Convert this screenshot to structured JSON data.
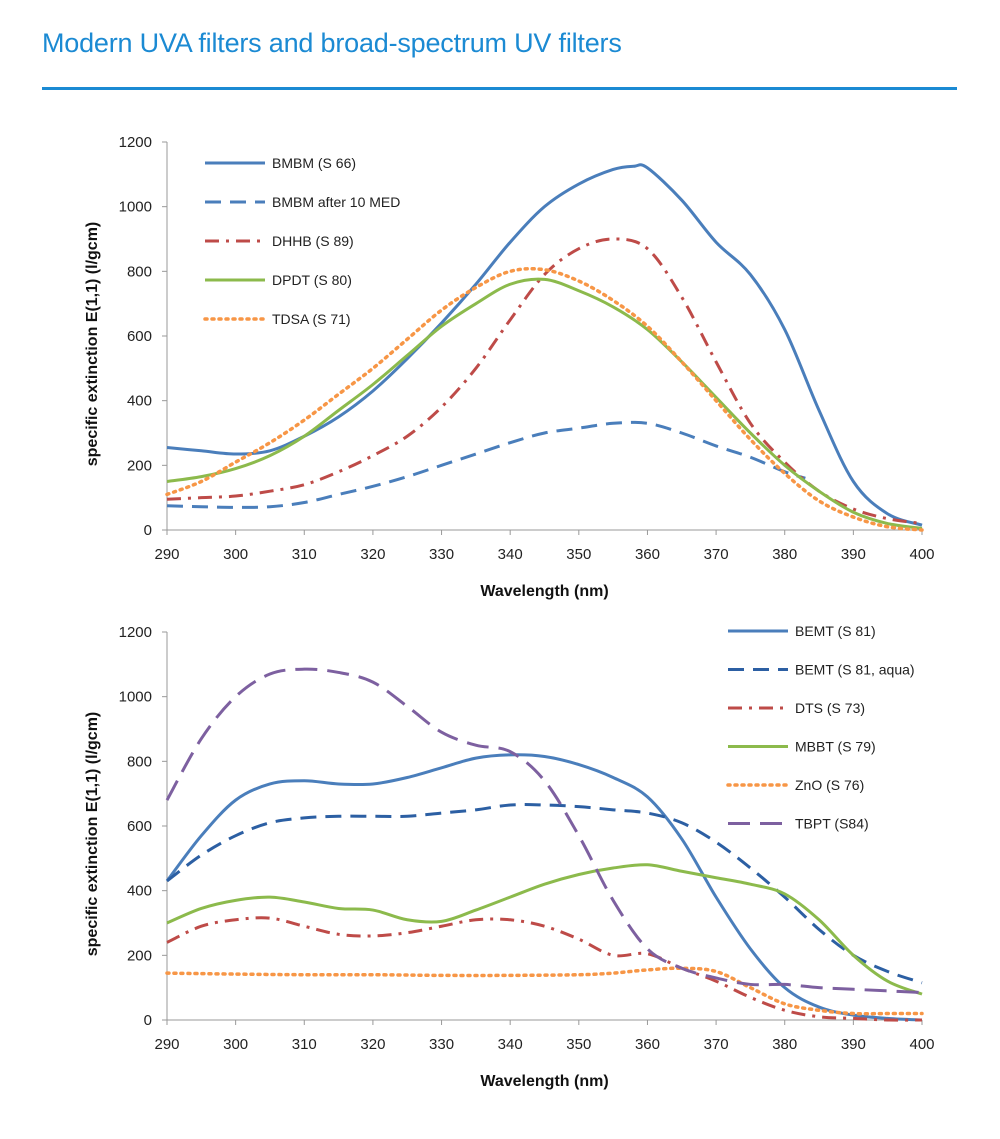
{
  "title": "Modern UVA filters and broad-spectrum UV filters",
  "colors": {
    "accent": "#1b8ad3"
  },
  "chart_data": [
    {
      "type": "line",
      "xlabel": "Wavelength (nm)",
      "ylabel": "specific extinction E(1,1) (l/gcm)",
      "xlim": [
        290,
        400
      ],
      "ylim": [
        0,
        1200
      ],
      "xticks": [
        "290",
        "300",
        "310",
        "320",
        "330",
        "340",
        "350",
        "360",
        "370",
        "380",
        "390",
        "400"
      ],
      "yticks": [
        "0",
        "200",
        "400",
        "600",
        "800",
        "1000",
        "1200"
      ],
      "grid": false,
      "legend": "top-left",
      "series": [
        {
          "name": "BMBM (S 66)",
          "color": "#4a7ebb",
          "dash": "solid",
          "x": [
            290,
            295,
            300,
            305,
            310,
            315,
            320,
            325,
            330,
            335,
            340,
            345,
            350,
            355,
            358,
            360,
            365,
            370,
            375,
            380,
            385,
            390,
            395,
            400
          ],
          "y": [
            255,
            245,
            235,
            245,
            290,
            350,
            430,
            530,
            640,
            760,
            890,
            1000,
            1070,
            1115,
            1125,
            1120,
            1020,
            890,
            790,
            620,
            370,
            150,
            50,
            15
          ]
        },
        {
          "name": "BMBM after 10 MED",
          "color": "#4a7ebb",
          "dash": "dash",
          "x": [
            290,
            295,
            300,
            305,
            310,
            315,
            320,
            325,
            330,
            335,
            340,
            345,
            350,
            355,
            360,
            365,
            370,
            375,
            380,
            383
          ],
          "y": [
            75,
            72,
            70,
            72,
            85,
            110,
            135,
            165,
            200,
            235,
            270,
            300,
            315,
            330,
            330,
            300,
            260,
            225,
            180,
            160
          ]
        },
        {
          "name": "DHHB (S 89)",
          "color": "#be4b48",
          "dash": "dashdot",
          "x": [
            290,
            295,
            300,
            305,
            310,
            315,
            320,
            325,
            330,
            335,
            340,
            345,
            350,
            355,
            360,
            365,
            370,
            375,
            380,
            385,
            390,
            395,
            400
          ],
          "y": [
            95,
            100,
            105,
            120,
            140,
            180,
            230,
            290,
            380,
            500,
            650,
            790,
            870,
            900,
            870,
            720,
            520,
            330,
            210,
            120,
            65,
            35,
            20
          ]
        },
        {
          "name": "DPDT (S 80)",
          "color": "#8cba4c",
          "dash": "solid",
          "x": [
            290,
            295,
            300,
            305,
            310,
            315,
            320,
            325,
            330,
            335,
            340,
            345,
            350,
            355,
            360,
            365,
            370,
            375,
            380,
            385,
            390,
            395,
            400
          ],
          "y": [
            150,
            165,
            190,
            230,
            290,
            370,
            450,
            540,
            630,
            700,
            760,
            775,
            740,
            690,
            620,
            520,
            410,
            300,
            200,
            120,
            55,
            20,
            5
          ]
        },
        {
          "name": "TDSA (S 71)",
          "color": "#f79646",
          "dash": "dot",
          "x": [
            290,
            295,
            300,
            305,
            310,
            315,
            320,
            325,
            330,
            335,
            340,
            345,
            350,
            355,
            360,
            365,
            370,
            375,
            380,
            385,
            390,
            395,
            400
          ],
          "y": [
            110,
            150,
            210,
            270,
            340,
            420,
            500,
            590,
            680,
            750,
            800,
            805,
            770,
            710,
            630,
            520,
            400,
            280,
            175,
            90,
            40,
            10,
            0
          ]
        }
      ]
    },
    {
      "type": "line",
      "xlabel": "Wavelength (nm)",
      "ylabel": "specific extinction E(1,1) (l/gcm)",
      "xlim": [
        290,
        400
      ],
      "ylim": [
        0,
        1200
      ],
      "xticks": [
        "290",
        "300",
        "310",
        "320",
        "330",
        "340",
        "350",
        "360",
        "370",
        "380",
        "390",
        "400"
      ],
      "yticks": [
        "0",
        "200",
        "400",
        "600",
        "800",
        "1000",
        "1200"
      ],
      "grid": false,
      "legend": "top-right",
      "series": [
        {
          "name": "BEMT (S 81)",
          "color": "#4a7ebb",
          "dash": "solid",
          "x": [
            290,
            295,
            300,
            305,
            310,
            315,
            320,
            325,
            330,
            335,
            340,
            345,
            350,
            355,
            360,
            365,
            370,
            375,
            380,
            385,
            390,
            395,
            400
          ],
          "y": [
            430,
            570,
            680,
            730,
            740,
            730,
            730,
            750,
            780,
            810,
            820,
            815,
            790,
            750,
            690,
            560,
            380,
            220,
            100,
            40,
            15,
            5,
            0
          ]
        },
        {
          "name": "BEMT (S 81, aqua)",
          "color": "#2c5fa3",
          "dash": "dash",
          "x": [
            290,
            295,
            300,
            305,
            310,
            315,
            320,
            325,
            330,
            335,
            340,
            345,
            350,
            355,
            360,
            365,
            370,
            375,
            380,
            385,
            390,
            395,
            400
          ],
          "y": [
            430,
            510,
            570,
            610,
            625,
            630,
            630,
            630,
            640,
            650,
            665,
            665,
            660,
            650,
            640,
            610,
            550,
            470,
            380,
            280,
            200,
            150,
            115
          ]
        },
        {
          "name": "DTS (S 73)",
          "color": "#be4b48",
          "dash": "dashdot",
          "x": [
            290,
            295,
            300,
            305,
            310,
            315,
            320,
            325,
            330,
            335,
            340,
            345,
            350,
            355,
            360,
            365,
            370,
            375,
            380,
            385,
            390,
            395,
            400
          ],
          "y": [
            240,
            290,
            310,
            315,
            290,
            265,
            260,
            270,
            290,
            310,
            310,
            290,
            250,
            200,
            205,
            160,
            120,
            70,
            30,
            10,
            5,
            0,
            0
          ]
        },
        {
          "name": "MBBT (S 79)",
          "color": "#8cba4c",
          "dash": "solid",
          "x": [
            290,
            295,
            300,
            305,
            310,
            315,
            320,
            325,
            330,
            335,
            340,
            345,
            350,
            355,
            360,
            365,
            370,
            375,
            380,
            385,
            390,
            395,
            400
          ],
          "y": [
            300,
            345,
            370,
            380,
            365,
            345,
            340,
            310,
            305,
            340,
            380,
            420,
            450,
            470,
            480,
            460,
            440,
            420,
            390,
            310,
            200,
            120,
            80
          ]
        },
        {
          "name": "ZnO (S 76)",
          "color": "#f79646",
          "dash": "dot",
          "x": [
            290,
            300,
            310,
            320,
            330,
            340,
            350,
            355,
            360,
            365,
            370,
            375,
            380,
            385,
            390,
            395,
            400
          ],
          "y": [
            145,
            142,
            140,
            140,
            138,
            138,
            140,
            145,
            155,
            160,
            150,
            100,
            50,
            30,
            20,
            20,
            20
          ]
        },
        {
          "name": "TBPT (S84)",
          "color": "#7d60a0",
          "dash": "longdash",
          "x": [
            290,
            295,
            300,
            305,
            310,
            315,
            320,
            325,
            330,
            335,
            340,
            345,
            350,
            355,
            360,
            365,
            370,
            375,
            380,
            385,
            390,
            395,
            400
          ],
          "y": [
            680,
            870,
            1000,
            1070,
            1085,
            1075,
            1045,
            970,
            890,
            850,
            830,
            740,
            570,
            370,
            220,
            160,
            130,
            110,
            110,
            100,
            95,
            90,
            85
          ]
        }
      ]
    }
  ]
}
